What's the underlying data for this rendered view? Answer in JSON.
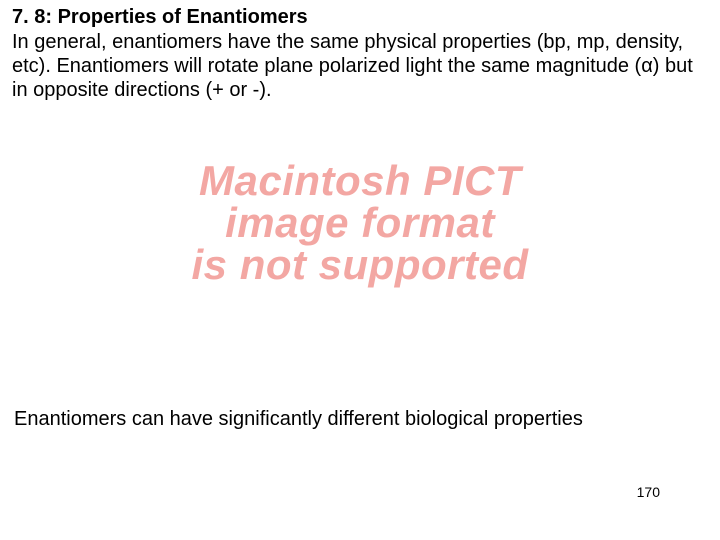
{
  "heading": {
    "text": "7. 8: Properties of Enantiomers",
    "fontsize": 20,
    "color": "#000000"
  },
  "body": {
    "text": "In general, enantiomers have the same physical properties (bp, mp, density, etc). Enantiomers will rotate plane polarized light the same magnitude (α) but in opposite directions (+ or -).",
    "fontsize": 20,
    "color": "#000000"
  },
  "placeholder": {
    "lines": [
      "Macintosh PICT",
      "image format",
      "is not supported"
    ],
    "color": "#f3a7a3",
    "fontsize": 42
  },
  "footer": {
    "text": "Enantiomers can have significantly different biological properties",
    "fontsize": 20,
    "color": "#000000"
  },
  "page_number": {
    "text": "170",
    "fontsize": 14,
    "color": "#000000"
  },
  "background_color": "#ffffff"
}
